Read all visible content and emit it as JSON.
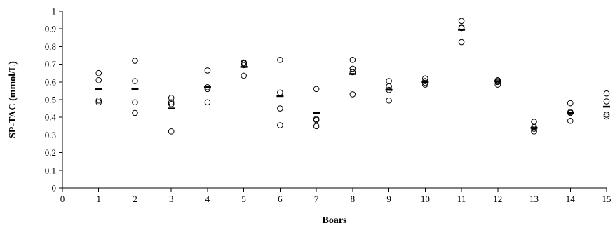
{
  "chart_data": {
    "type": "scatter",
    "title": "",
    "xlabel": "Boars",
    "ylabel": "SP-TAC (mmol/L)",
    "xlim": [
      0,
      15
    ],
    "ylim": [
      0,
      1
    ],
    "x_ticks": [
      0,
      1,
      2,
      3,
      4,
      5,
      6,
      7,
      8,
      9,
      10,
      11,
      12,
      13,
      14,
      15
    ],
    "y_ticks": [
      0,
      0.1,
      0.2,
      0.3,
      0.4,
      0.5,
      0.6,
      0.7,
      0.8,
      0.9,
      1
    ],
    "grid": false,
    "legend": "none",
    "marker": "open-circle",
    "series": [
      {
        "values": [
          {
            "x": 1,
            "y": [
              0.65,
              0.61,
              0.495,
              0.485
            ],
            "mean": 0.56
          },
          {
            "x": 2,
            "y": [
              0.72,
              0.605,
              0.485,
              0.425
            ],
            "mean": 0.56
          },
          {
            "x": 3,
            "y": [
              0.51,
              0.485,
              0.475,
              0.32
            ],
            "mean": 0.45
          },
          {
            "x": 4,
            "y": [
              0.665,
              0.57,
              0.56,
              0.485
            ],
            "mean": 0.57
          },
          {
            "x": 5,
            "y": [
              0.71,
              0.705,
              0.695,
              0.635
            ],
            "mean": 0.685
          },
          {
            "x": 6,
            "y": [
              0.725,
              0.54,
              0.45,
              0.355
            ],
            "mean": 0.52
          },
          {
            "x": 7,
            "y": [
              0.56,
              0.39,
              0.385,
              0.35
            ],
            "mean": 0.425
          },
          {
            "x": 8,
            "y": [
              0.725,
              0.675,
              0.655,
              0.53
            ],
            "mean": 0.645
          },
          {
            "x": 9,
            "y": [
              0.605,
              0.575,
              0.555,
              0.495
            ],
            "mean": 0.555
          },
          {
            "x": 10,
            "y": [
              0.62,
              0.605,
              0.595,
              0.585
            ],
            "mean": 0.6
          },
          {
            "x": 11,
            "y": [
              0.945,
              0.91,
              0.905,
              0.825
            ],
            "mean": 0.895
          },
          {
            "x": 12,
            "y": [
              0.61,
              0.605,
              0.6,
              0.585
            ],
            "mean": 0.605
          },
          {
            "x": 13,
            "y": [
              0.375,
              0.345,
              0.335,
              0.32
            ],
            "mean": 0.34
          },
          {
            "x": 14,
            "y": [
              0.48,
              0.43,
              0.425,
              0.38
            ],
            "mean": 0.425
          },
          {
            "x": 15,
            "y": [
              0.535,
              0.49,
              0.415,
              0.405
            ],
            "mean": 0.46
          }
        ]
      }
    ]
  },
  "colors": {
    "marks": "#000000",
    "background": "#ffffff"
  }
}
